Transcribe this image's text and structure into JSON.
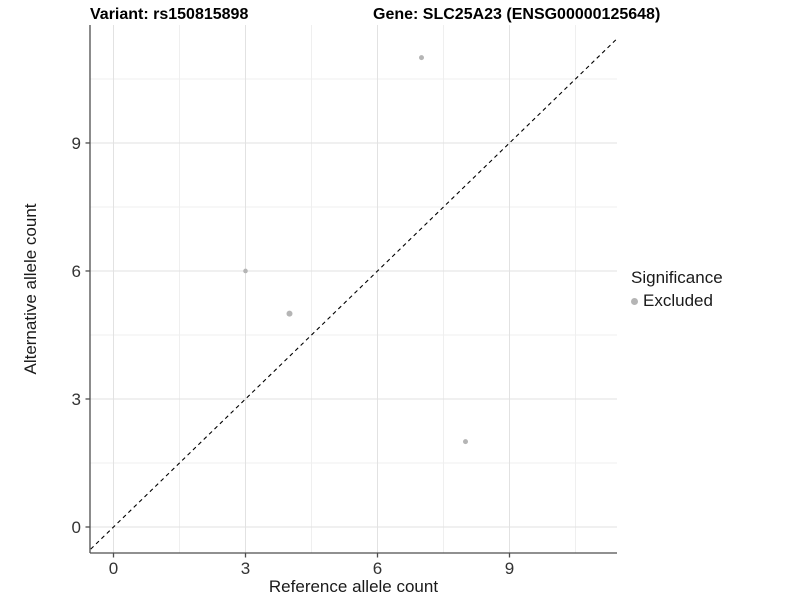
{
  "titles": {
    "variant": "Variant: rs150815898",
    "gene": "Gene: SLC25A23 (ENSG00000125648)"
  },
  "legend": {
    "title": "Significance",
    "items": [
      {
        "label": "Excluded",
        "color": "#b5b5b5"
      }
    ]
  },
  "colors": {
    "point": "#b5b5b5",
    "identity_line": "#000000",
    "axis_line": "#4d4d4d",
    "tick_label": "#333333",
    "grid_major": "#e2e2e2",
    "grid_minor": "#efefef",
    "background": "#ffffff"
  },
  "chart_data": {
    "type": "scatter",
    "title_left": "Variant: rs150815898",
    "title_right": "Gene: SLC25A23 (ENSG00000125648)",
    "xlabel": "Reference allele count",
    "ylabel": "Alternative allele count",
    "xlim": [
      -0.55,
      11.45
    ],
    "ylim": [
      -0.62,
      11.8
    ],
    "x_ticks": [
      0,
      3,
      6,
      9
    ],
    "y_ticks": [
      0,
      3,
      6,
      9
    ],
    "x_minor_ticks": [
      1.5,
      4.5,
      7.5,
      10.5
    ],
    "y_minor_ticks": [
      1.5,
      4.5,
      7.5,
      10.5
    ],
    "grid": "major+minor",
    "legend_position": "right",
    "legend_title": "Significance",
    "legend_items": [
      "Excluded"
    ],
    "identity_line": {
      "type": "abline",
      "slope": 1,
      "intercept": 0,
      "style": "dashed",
      "color": "#000000"
    },
    "series": [
      {
        "name": "Excluded",
        "color": "#b5b5b5",
        "points": [
          {
            "x": 3,
            "y": 6,
            "r": 2.3
          },
          {
            "x": 4,
            "y": 5,
            "r": 3.0
          },
          {
            "x": 7,
            "y": 11,
            "r": 2.5
          },
          {
            "x": 8,
            "y": 2,
            "r": 2.5
          }
        ]
      }
    ]
  }
}
